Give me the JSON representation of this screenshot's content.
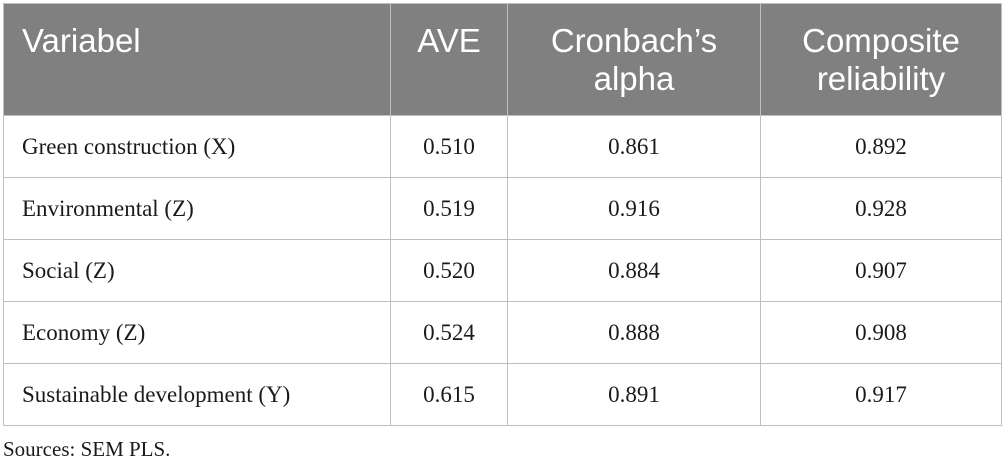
{
  "table": {
    "headers": [
      "Variabel",
      "AVE",
      "Cronbach’s alpha",
      "Composite reliability"
    ],
    "header_lines": [
      [
        "Variabel"
      ],
      [
        "AVE"
      ],
      [
        "Cronbach’s",
        "alpha"
      ],
      [
        "Composite",
        "reliability"
      ]
    ],
    "rows": [
      [
        "Green construction (X)",
        "0.510",
        "0.861",
        "0.892"
      ],
      [
        "Environmental (Z)",
        "0.519",
        "0.916",
        "0.928"
      ],
      [
        "Social (Z)",
        "0.520",
        "0.884",
        "0.907"
      ],
      [
        "Economy (Z)",
        "0.524",
        "0.888",
        "0.908"
      ],
      [
        "Sustainable development (Y)",
        "0.615",
        "0.891",
        "0.917"
      ]
    ]
  },
  "footnote": "Sources: SEM PLS.",
  "colors": {
    "header_background": "#808080",
    "header_text": "#ffffff",
    "border": "#bfbfbf",
    "body_text": "#1a1a1a"
  }
}
